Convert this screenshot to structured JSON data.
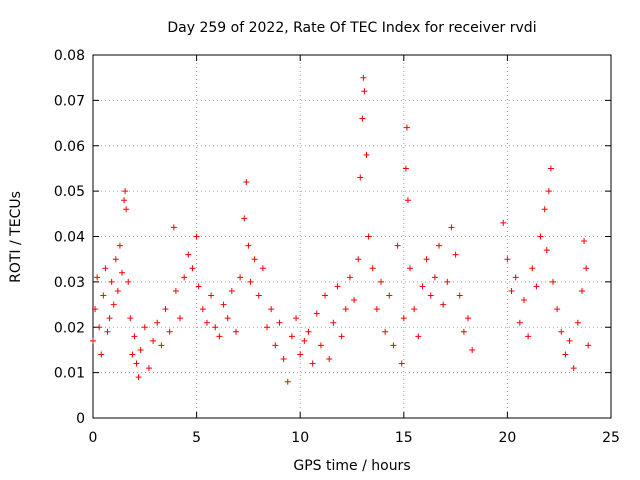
{
  "chart_data": {
    "type": "scatter",
    "title": "Day 259 of 2022, Rate Of TEC Index for receiver rvdi",
    "xlabel": "GPS time / hours",
    "ylabel": "ROTI / TECUs",
    "xlim": [
      0,
      25
    ],
    "ylim": [
      0,
      0.08
    ],
    "x_ticks": [
      "0",
      "5",
      "10",
      "15",
      "20",
      "25"
    ],
    "y_ticks": [
      "0",
      "0.01",
      "0.02",
      "0.03",
      "0.04",
      "0.05",
      "0.06",
      "0.07",
      "0.08"
    ],
    "grid": true,
    "marker": "plus",
    "series": [
      {
        "color": "#ff0000",
        "points": [
          [
            0.0,
            0.017
          ],
          [
            0.1,
            0.024
          ],
          [
            0.2,
            0.031
          ],
          [
            0.3,
            0.02
          ],
          [
            0.4,
            0.014
          ],
          [
            0.5,
            0.027
          ],
          [
            0.6,
            0.033
          ],
          [
            0.7,
            0.019
          ],
          [
            0.8,
            0.022
          ],
          [
            0.9,
            0.03
          ],
          [
            1.0,
            0.025
          ],
          [
            1.1,
            0.035
          ],
          [
            1.2,
            0.028
          ],
          [
            1.3,
            0.038
          ],
          [
            1.4,
            0.032
          ],
          [
            1.5,
            0.048
          ],
          [
            1.55,
            0.05
          ],
          [
            1.6,
            0.046
          ],
          [
            1.7,
            0.03
          ],
          [
            1.8,
            0.022
          ],
          [
            1.9,
            0.014
          ],
          [
            2.0,
            0.018
          ],
          [
            2.1,
            0.012
          ],
          [
            2.2,
            0.009
          ],
          [
            2.3,
            0.015
          ],
          [
            2.5,
            0.02
          ],
          [
            2.7,
            0.011
          ],
          [
            2.9,
            0.017
          ],
          [
            3.1,
            0.021
          ],
          [
            3.3,
            0.016
          ],
          [
            3.5,
            0.024
          ],
          [
            3.7,
            0.019
          ],
          [
            3.9,
            0.042
          ],
          [
            4.0,
            0.028
          ],
          [
            4.2,
            0.022
          ],
          [
            4.4,
            0.031
          ],
          [
            4.6,
            0.036
          ],
          [
            4.8,
            0.033
          ],
          [
            5.0,
            0.04
          ],
          [
            5.1,
            0.029
          ],
          [
            5.3,
            0.024
          ],
          [
            5.5,
            0.021
          ],
          [
            5.7,
            0.027
          ],
          [
            5.9,
            0.02
          ],
          [
            6.1,
            0.018
          ],
          [
            6.3,
            0.025
          ],
          [
            6.5,
            0.022
          ],
          [
            6.7,
            0.028
          ],
          [
            6.9,
            0.019
          ],
          [
            7.1,
            0.031
          ],
          [
            7.3,
            0.044
          ],
          [
            7.4,
            0.052
          ],
          [
            7.5,
            0.038
          ],
          [
            7.6,
            0.03
          ],
          [
            7.8,
            0.035
          ],
          [
            8.0,
            0.027
          ],
          [
            8.2,
            0.033
          ],
          [
            8.4,
            0.02
          ],
          [
            8.6,
            0.024
          ],
          [
            8.8,
            0.016
          ],
          [
            9.0,
            0.021
          ],
          [
            9.2,
            0.013
          ],
          [
            9.4,
            0.008
          ],
          [
            9.6,
            0.018
          ],
          [
            9.8,
            0.022
          ],
          [
            10.0,
            0.014
          ],
          [
            10.2,
            0.017
          ],
          [
            10.4,
            0.019
          ],
          [
            10.6,
            0.012
          ],
          [
            10.8,
            0.023
          ],
          [
            11.0,
            0.016
          ],
          [
            11.2,
            0.027
          ],
          [
            11.4,
            0.013
          ],
          [
            11.6,
            0.021
          ],
          [
            11.8,
            0.029
          ],
          [
            12.0,
            0.018
          ],
          [
            12.2,
            0.024
          ],
          [
            12.4,
            0.031
          ],
          [
            12.6,
            0.026
          ],
          [
            12.8,
            0.035
          ],
          [
            12.9,
            0.053
          ],
          [
            13.0,
            0.066
          ],
          [
            13.05,
            0.075
          ],
          [
            13.1,
            0.072
          ],
          [
            13.2,
            0.058
          ],
          [
            13.3,
            0.04
          ],
          [
            13.5,
            0.033
          ],
          [
            13.7,
            0.024
          ],
          [
            13.9,
            0.03
          ],
          [
            14.1,
            0.019
          ],
          [
            14.3,
            0.027
          ],
          [
            14.5,
            0.016
          ],
          [
            14.7,
            0.038
          ],
          [
            14.9,
            0.012
          ],
          [
            15.0,
            0.022
          ],
          [
            15.1,
            0.055
          ],
          [
            15.15,
            0.064
          ],
          [
            15.2,
            0.048
          ],
          [
            15.3,
            0.033
          ],
          [
            15.5,
            0.024
          ],
          [
            15.7,
            0.018
          ],
          [
            15.9,
            0.029
          ],
          [
            16.1,
            0.035
          ],
          [
            16.3,
            0.027
          ],
          [
            16.5,
            0.031
          ],
          [
            16.7,
            0.038
          ],
          [
            16.9,
            0.025
          ],
          [
            17.1,
            0.03
          ],
          [
            17.3,
            0.042
          ],
          [
            17.5,
            0.036
          ],
          [
            17.7,
            0.027
          ],
          [
            17.9,
            0.019
          ],
          [
            18.1,
            0.022
          ],
          [
            18.3,
            0.015
          ],
          [
            19.8,
            0.043
          ],
          [
            20.0,
            0.035
          ],
          [
            20.2,
            0.028
          ],
          [
            20.4,
            0.031
          ],
          [
            20.6,
            0.021
          ],
          [
            20.8,
            0.026
          ],
          [
            21.0,
            0.018
          ],
          [
            21.2,
            0.033
          ],
          [
            21.4,
            0.029
          ],
          [
            21.6,
            0.04
          ],
          [
            21.8,
            0.046
          ],
          [
            21.9,
            0.037
          ],
          [
            22.0,
            0.05
          ],
          [
            22.1,
            0.055
          ],
          [
            22.2,
            0.03
          ],
          [
            22.4,
            0.024
          ],
          [
            22.6,
            0.019
          ],
          [
            22.8,
            0.014
          ],
          [
            23.0,
            0.017
          ],
          [
            23.2,
            0.011
          ],
          [
            23.4,
            0.021
          ],
          [
            23.6,
            0.028
          ],
          [
            23.7,
            0.039
          ],
          [
            23.8,
            0.033
          ],
          [
            23.9,
            0.016
          ]
        ]
      }
    ]
  }
}
